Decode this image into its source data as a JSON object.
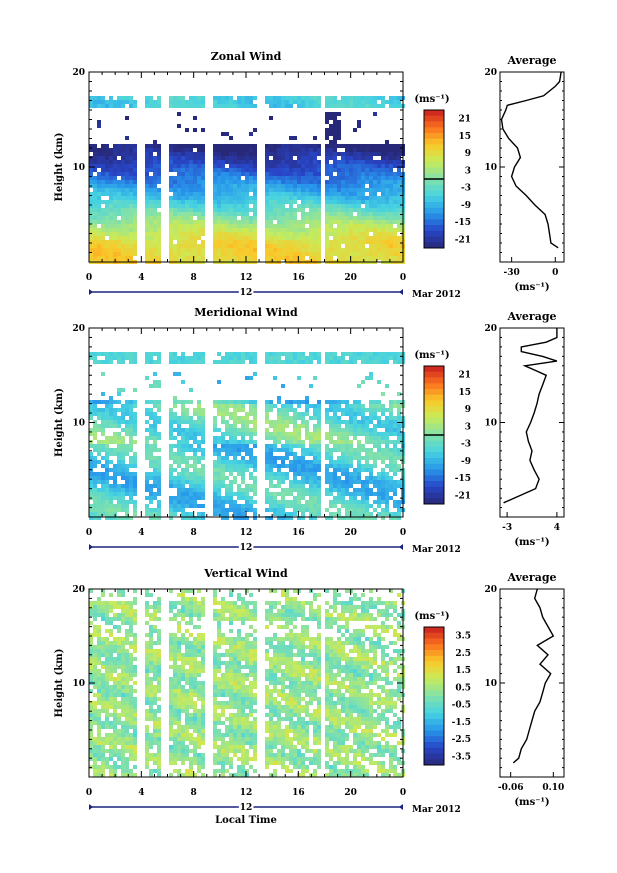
{
  "chart_data": [
    {
      "type": "heatmap",
      "title": "Zonal Wind",
      "ylabel": "Height (km)",
      "ylim": [
        0,
        20
      ],
      "yticks": [
        "10",
        "20"
      ],
      "xticks": [
        "0",
        "4",
        "8",
        "12",
        "16",
        "20",
        "0"
      ],
      "date_label": "12",
      "date_suffix": "Mar 2012",
      "colorbar": {
        "unit": "(ms⁻¹)",
        "ticks": [
          "21",
          "15",
          "9",
          "3",
          "-3",
          "-9",
          "-15",
          "-21"
        ]
      },
      "average": {
        "title": "Average",
        "xlabel": "(ms⁻¹)",
        "xticks": [
          "-30",
          "0"
        ],
        "xlim": [
          -38,
          6
        ],
        "yticks": [
          "10",
          "20"
        ],
        "height_km": [
          1.5,
          2,
          3,
          4,
          5,
          6,
          7,
          8,
          9,
          10,
          11,
          12,
          13,
          14,
          15,
          16,
          16.5,
          17,
          17.5,
          18,
          18.5,
          19,
          20
        ],
        "value_ms": [
          2,
          -3,
          -4,
          -5,
          -7,
          -14,
          -20,
          -27,
          -30,
          -28,
          -24,
          -26,
          -32,
          -36,
          -37,
          -34,
          -33,
          -20,
          -8,
          -4,
          0,
          3,
          4
        ]
      }
    },
    {
      "type": "heatmap",
      "title": "Meridional Wind",
      "ylabel": "Height (km)",
      "ylim": [
        0,
        20
      ],
      "yticks": [
        "10",
        "20"
      ],
      "xticks": [
        "0",
        "4",
        "8",
        "12",
        "16",
        "20",
        "0"
      ],
      "date_label": "12",
      "date_suffix": "Mar 2012",
      "colorbar": {
        "unit": "(ms⁻¹)",
        "ticks": [
          "21",
          "15",
          "9",
          "3",
          "-3",
          "-9",
          "-15",
          "-21"
        ]
      },
      "average": {
        "title": "Average",
        "xlabel": "(ms⁻¹)",
        "xticks": [
          "-3",
          "4"
        ],
        "xlim": [
          -4,
          5
        ],
        "yticks": [
          "10",
          "20"
        ],
        "height_km": [
          1.5,
          2,
          3,
          4,
          5,
          6,
          7,
          8,
          9,
          10,
          11,
          12,
          13,
          14,
          15,
          15.5,
          16,
          16.5,
          17,
          17.5,
          18,
          18.5,
          19,
          20
        ],
        "value_ms": [
          -3.5,
          -2,
          1,
          1.5,
          0.8,
          0.2,
          0.5,
          0,
          -0.3,
          0.3,
          0.8,
          1.2,
          1.5,
          2,
          2.5,
          1,
          -0.5,
          4,
          2,
          -1,
          -1,
          2.5,
          4,
          4
        ]
      }
    },
    {
      "type": "heatmap",
      "title": "Vertical Wind",
      "ylabel": "Height (km)",
      "ylim": [
        0,
        20
      ],
      "yticks": [
        "10",
        "20"
      ],
      "xticks": [
        "0",
        "4",
        "8",
        "12",
        "16",
        "20",
        "0"
      ],
      "date_label": "12",
      "date_suffix": "Mar 2012",
      "xlabel": "Local Time",
      "colorbar": {
        "unit": "(ms⁻¹)",
        "ticks": [
          "3.5",
          "2.5",
          "1.5",
          "0.5",
          "-0.5",
          "-1.5",
          "-2.5",
          "-3.5"
        ]
      },
      "average": {
        "title": "Average",
        "xlabel": "(ms⁻¹)",
        "xticks": [
          "-0.06",
          "0.10"
        ],
        "xlim": [
          -0.1,
          0.14
        ],
        "yticks": [
          "10",
          "20"
        ],
        "height_km": [
          1.5,
          2,
          3,
          4,
          5,
          6,
          7,
          8,
          9,
          10,
          11,
          12,
          13,
          14,
          15,
          16,
          17,
          18,
          19,
          20
        ],
        "value_ms": [
          -0.05,
          -0.03,
          -0.02,
          0,
          0.01,
          0.02,
          0.03,
          0.05,
          0.06,
          0.07,
          0.09,
          0.05,
          0.08,
          0.04,
          0.1,
          0.08,
          0.06,
          0.05,
          0.03,
          0.04
        ]
      }
    }
  ]
}
